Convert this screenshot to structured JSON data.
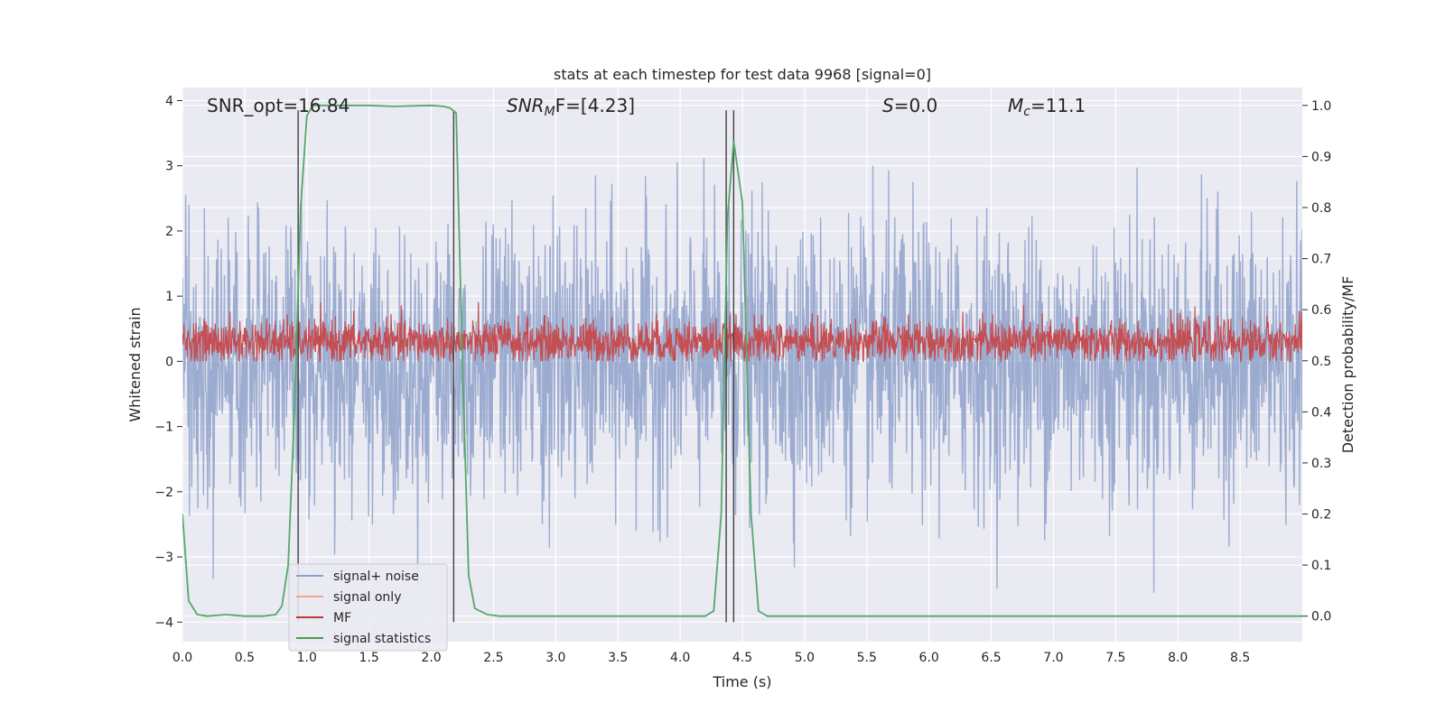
{
  "chart_data": {
    "type": "line",
    "title": "stats at each timestep for test data 9968 [signal=0]",
    "xlabel": "Time (s)",
    "ylabel": "Whitened strain",
    "ylabel_right": "Detection probability/MF",
    "xlim": [
      0.0,
      9.0
    ],
    "ylim": [
      -4.3,
      4.2
    ],
    "ylim_right": [
      -0.05,
      1.035
    ],
    "x_ticks": [
      "0.0",
      "0.5",
      "1.0",
      "1.5",
      "2.0",
      "2.5",
      "3.0",
      "3.5",
      "4.0",
      "4.5",
      "5.0",
      "5.5",
      "6.0",
      "6.5",
      "7.0",
      "7.5",
      "8.0",
      "8.5"
    ],
    "y_ticks": [
      "−4",
      "−3",
      "−2",
      "−1",
      "0",
      "1",
      "2",
      "3",
      "4"
    ],
    "y_right_ticks": [
      "0.0",
      "0.1",
      "0.2",
      "0.3",
      "0.4",
      "0.5",
      "0.6",
      "0.7",
      "0.8",
      "0.9",
      "1.0"
    ],
    "annotations": [
      {
        "id": "snr-opt",
        "text": "SNR_opt=16.84"
      },
      {
        "id": "snr-mf",
        "text": "SNR",
        "sub": "M",
        "rest": "F=[4.23]"
      },
      {
        "id": "s",
        "text": "S",
        "rest": "=0.0"
      },
      {
        "id": "mc",
        "text": "M",
        "sub": "c",
        "rest": "=11.1"
      }
    ],
    "legend": {
      "location": "lower-left",
      "entries": [
        {
          "label": "signal+ noise",
          "color": "#8da0cb"
        },
        {
          "label": "signal only",
          "color": "#f0a98c"
        },
        {
          "label": "MF",
          "color": "#c0373b"
        },
        {
          "label": "signal statistics",
          "color": "#459e4e"
        }
      ]
    },
    "series": [
      {
        "name": "signal+ noise",
        "kind": "noise",
        "axis": "left",
        "color": "#8ea1ca",
        "sigma": 1.0,
        "typical_range": [
          -3.7,
          3.7
        ]
      },
      {
        "name": "MF",
        "kind": "noise",
        "axis": "left",
        "color": "#c44e52",
        "center": 0.3,
        "typical_range": [
          0.0,
          0.98
        ]
      },
      {
        "name": "signal statistics",
        "kind": "line",
        "axis": "right",
        "color": "#55a868",
        "x": [
          0.0,
          0.05,
          0.12,
          0.2,
          0.35,
          0.5,
          0.65,
          0.75,
          0.8,
          0.85,
          0.9,
          0.95,
          1.0,
          1.05,
          1.1,
          1.5,
          1.7,
          2.0,
          2.1,
          2.15,
          2.2,
          2.25,
          2.3,
          2.35,
          2.45,
          2.55,
          2.7,
          3.5,
          4.2,
          4.27,
          4.33,
          4.38,
          4.43,
          4.5,
          4.57,
          4.63,
          4.7,
          5.0,
          6.0,
          7.0,
          8.0,
          9.0
        ],
        "y": [
          0.2,
          0.03,
          0.003,
          0.0,
          0.003,
          0.0,
          0.0,
          0.003,
          0.02,
          0.1,
          0.4,
          0.8,
          0.98,
          1.0,
          1.0,
          1.0,
          0.998,
          1.0,
          0.998,
          0.995,
          0.985,
          0.5,
          0.08,
          0.015,
          0.003,
          0.0,
          0.0,
          0.0,
          0.0,
          0.01,
          0.2,
          0.78,
          0.93,
          0.81,
          0.2,
          0.01,
          0.0,
          0.0,
          0.0,
          0.0,
          0.0,
          0.0
        ]
      },
      {
        "name": "event markers",
        "kind": "vlines",
        "color": "#404040",
        "x": [
          0.93,
          2.18,
          4.37,
          4.43
        ],
        "y_top": [
          3.85,
          3.85,
          3.85,
          3.85
        ],
        "y_bottom": [
          -4.0,
          -4.0,
          -4.0,
          -4.0
        ]
      }
    ]
  }
}
